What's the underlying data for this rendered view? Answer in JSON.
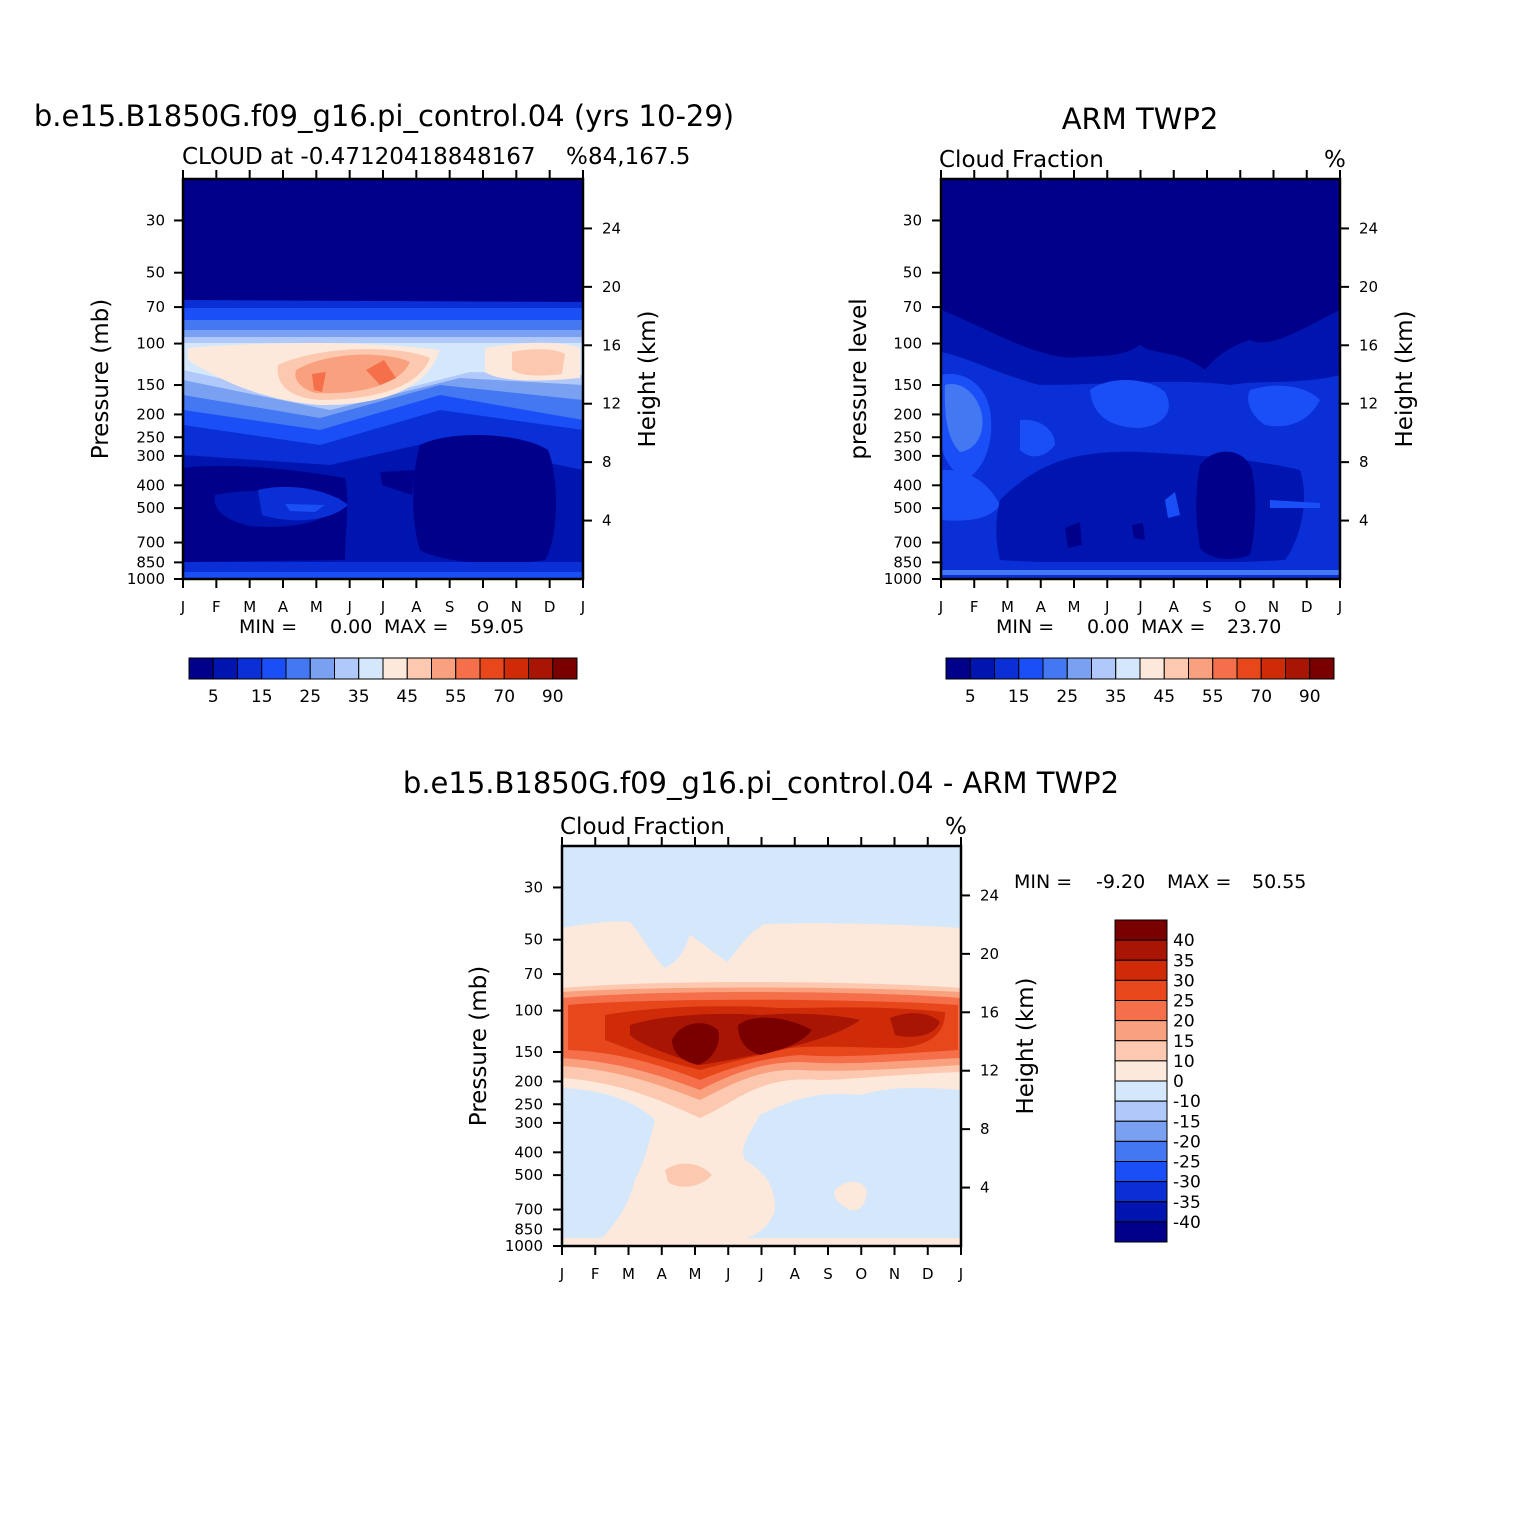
{
  "months": [
    "J",
    "F",
    "M",
    "A",
    "M",
    "J",
    "J",
    "A",
    "S",
    "O",
    "N",
    "D",
    "J"
  ],
  "pressure_ticks": [
    "30",
    "50",
    "70",
    "100",
    "150",
    "200",
    "250",
    "300",
    "400",
    "500",
    "700",
    "850",
    "1000"
  ],
  "height_ticks": [
    "24",
    "20",
    "16",
    "12",
    "8",
    "4"
  ],
  "colors": {
    "abs_scale": [
      "#00008b",
      "#0015b0",
      "#0a2fd6",
      "#1a4ff7",
      "#4477f2",
      "#7aa0f2",
      "#b0c9fa",
      "#d4e7fb",
      "#fde9db",
      "#fcc9b0",
      "#f9a17f",
      "#f46f4a",
      "#e8471c",
      "#cf2b08",
      "#a81504",
      "#7a0000"
    ],
    "diff_scale": [
      "#00008b",
      "#0015b0",
      "#0a2fd6",
      "#1a4ff7",
      "#4477f2",
      "#7aa0f2",
      "#b0c9fa",
      "#d4e7fb",
      "#fde9db",
      "#fcc9b0",
      "#f9a17f",
      "#f46f4a",
      "#e8471c",
      "#cf2b08",
      "#a81504",
      "#7a0000"
    ]
  },
  "panels": {
    "model": {
      "title": "b.e15.B1850G.f09_g16.pi_control.04 (yrs 10-29)",
      "subtitle_left": "CLOUD at -0.47120418848167",
      "subtitle_right": "84,167.5",
      "units": "%",
      "ylabel": "Pressure (mb)",
      "ylabel_right": "Height (km)",
      "min_label": "MIN =",
      "min_value": "0.00",
      "max_label": "MAX =",
      "max_value": "59.05",
      "cb_labels": [
        "5",
        "15",
        "25",
        "35",
        "45",
        "55",
        "70",
        "90"
      ]
    },
    "obs": {
      "title": "ARM TWP2",
      "subtitle_left": "Cloud Fraction",
      "units": "%",
      "ylabel": "pressure level",
      "ylabel_right": "Height (km)",
      "min_label": "MIN =",
      "min_value": "0.00",
      "max_label": "MAX =",
      "max_value": "23.70",
      "cb_labels": [
        "5",
        "15",
        "25",
        "35",
        "45",
        "55",
        "70",
        "90"
      ]
    },
    "diff": {
      "title": "b.e15.B1850G.f09_g16.pi_control.04 - ARM TWP2",
      "subtitle_left": "Cloud Fraction",
      "units": "%",
      "ylabel": "Pressure (mb)",
      "ylabel_right": "Height (km)",
      "min_label": "MIN =",
      "min_value": "-9.20",
      "max_label": "MAX =",
      "max_value": "50.55",
      "cb_labels": [
        "40",
        "35",
        "30",
        "25",
        "20",
        "15",
        "10",
        "0",
        "-10",
        "-15",
        "-20",
        "-25",
        "-30",
        "-35",
        "-40"
      ]
    }
  },
  "chart_data": [
    {
      "type": "heatmap",
      "title": "b.e15.B1850G.f09_g16.pi_control.04 (yrs 10-29)",
      "subtitle": "CLOUD at -0.47120418848167 84,167.5",
      "xlabel": "",
      "ylabel": "Pressure (mb)",
      "ylabel_right": "Height (km)",
      "x": [
        "J",
        "F",
        "M",
        "A",
        "M",
        "J",
        "J",
        "A",
        "S",
        "O",
        "N",
        "D",
        "J"
      ],
      "y_scale": "log",
      "ylim": [
        1000,
        20
      ],
      "contour_levels": [
        0,
        5,
        10,
        15,
        20,
        25,
        30,
        35,
        40,
        45,
        50,
        55,
        60,
        70,
        80,
        90
      ],
      "min": 0.0,
      "max": 59.05,
      "features": [
        {
          "region": "30-80 mb, all months",
          "value": 0
        },
        {
          "region": "100-130 mb, all months",
          "value": 20
        },
        {
          "region": "130-200 mb, Feb-Sep",
          "value": 45
        },
        {
          "region": "140-160 mb, Apr and Jul",
          "value": 55
        },
        {
          "region": "130-170 mb, Nov-Dec",
          "value": 45
        },
        {
          "region": "200-300 mb, all months",
          "value": 20
        },
        {
          "region": "330-850 mb, Jul-Oct",
          "value": 0
        },
        {
          "region": "400-700 mb, Jan-Jul",
          "value": 5
        }
      ]
    },
    {
      "type": "heatmap",
      "title": "ARM TWP2",
      "subtitle": "Cloud Fraction",
      "units": "%",
      "ylabel": "pressure level",
      "ylabel_right": "Height (km)",
      "x": [
        "J",
        "F",
        "M",
        "A",
        "M",
        "J",
        "J",
        "A",
        "S",
        "O",
        "N",
        "D",
        "J"
      ],
      "y_scale": "log",
      "ylim": [
        1000,
        20
      ],
      "contour_levels": [
        0,
        5,
        10,
        15,
        20,
        25,
        30,
        35,
        40,
        45,
        50,
        55,
        60,
        70,
        80,
        90
      ],
      "min": 0.0,
      "max": 23.7,
      "features": [
        {
          "region": "30-110 mb, all months",
          "value": 0
        },
        {
          "region": "110-300 mb, all months",
          "value": 10
        },
        {
          "region": "150-300 mb, Jan-Feb",
          "value": 20
        },
        {
          "region": "300-700 mb, Jan-Apr",
          "value": 15
        },
        {
          "region": "400-800 mb, Sep-Oct",
          "value": 0
        },
        {
          "region": "700-1000 mb, all months",
          "value": 5
        }
      ]
    },
    {
      "type": "heatmap",
      "title": "b.e15.B1850G.f09_g16.pi_control.04 - ARM TWP2",
      "subtitle": "Cloud Fraction",
      "units": "%",
      "ylabel": "Pressure (mb)",
      "ylabel_right": "Height (km)",
      "x": [
        "J",
        "F",
        "M",
        "A",
        "M",
        "J",
        "J",
        "A",
        "S",
        "O",
        "N",
        "D",
        "J"
      ],
      "y_scale": "log",
      "ylim": [
        1000,
        20
      ],
      "contour_levels": [
        -40,
        -35,
        -30,
        -25,
        -20,
        -15,
        -10,
        0,
        10,
        15,
        20,
        25,
        30,
        35,
        40
      ],
      "min": -9.2,
      "max": 50.55,
      "features": [
        {
          "region": "20-60 mb, all months",
          "value": -5
        },
        {
          "region": "60-100 mb, all months",
          "value": 5
        },
        {
          "region": "100-200 mb, all months",
          "value": 25
        },
        {
          "region": "130-170 mb, Apr-Jul",
          "value": 40
        },
        {
          "region": "250-1000 mb, Jan-Mar and Aug-Dec",
          "value": -5
        },
        {
          "region": "300-1000 mb, Apr-Jul",
          "value": 5
        }
      ]
    }
  ]
}
